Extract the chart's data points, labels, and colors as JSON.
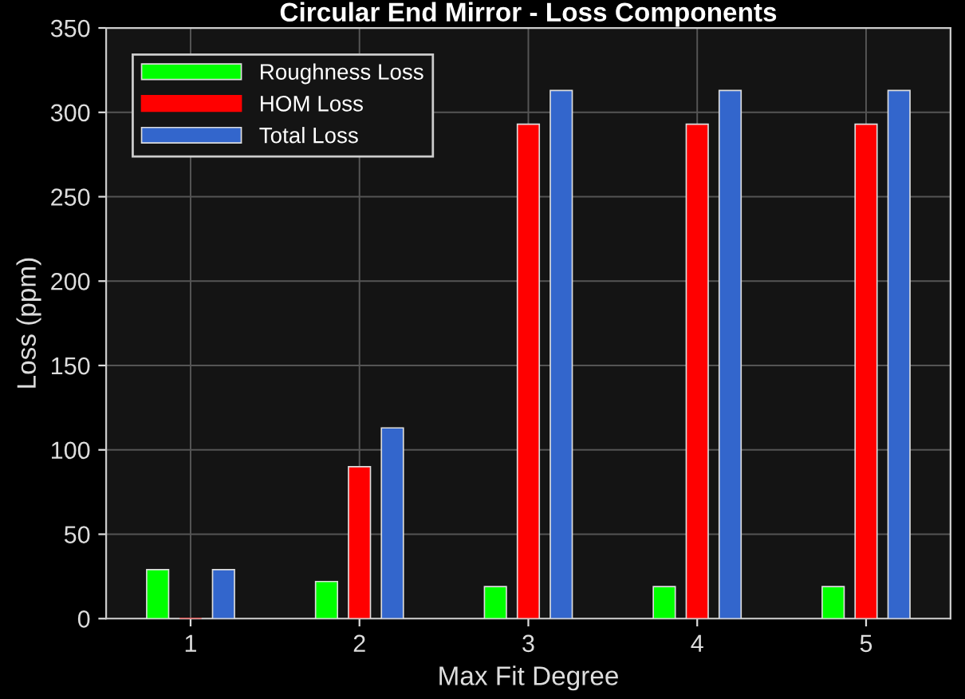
{
  "chart_data": {
    "type": "bar",
    "title": "Circular End Mirror - Loss Components",
    "xlabel": "Max Fit Degree",
    "ylabel": "Loss (ppm)",
    "categories": [
      "1",
      "2",
      "3",
      "4",
      "5"
    ],
    "series": [
      {
        "name": "Roughness Loss",
        "color": "#00ff00",
        "values": [
          29,
          22,
          19,
          19,
          19
        ]
      },
      {
        "name": "HOM Loss",
        "color": "#ff0000",
        "values": [
          0,
          90,
          293,
          293,
          293
        ]
      },
      {
        "name": "Total Loss",
        "color": "#3366cc",
        "values": [
          29,
          113,
          313,
          313,
          313
        ]
      }
    ],
    "ylim": [
      0,
      350
    ],
    "yticks": [
      0,
      50,
      100,
      150,
      200,
      250,
      300,
      350
    ],
    "grid": true,
    "legend": "top left"
  }
}
